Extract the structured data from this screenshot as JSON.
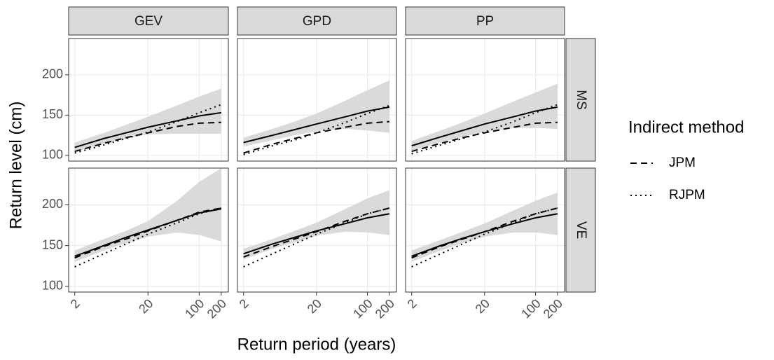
{
  "figure": {
    "xlabel": "Return period (years)",
    "ylabel": "Return level (cm)",
    "facets": {
      "columns": [
        "GEV",
        "GPD",
        "PP"
      ],
      "rows": [
        "MS",
        "VE"
      ]
    },
    "legend": {
      "title": "Indirect method",
      "entries": [
        {
          "name": "JPM",
          "linetype": "dashed"
        },
        {
          "name": "RJPM",
          "linetype": "dotted"
        }
      ]
    }
  },
  "chart_data": [
    {
      "type": "line",
      "log_x": true,
      "grid": true,
      "x": [
        2,
        5,
        10,
        20,
        50,
        100,
        200
      ],
      "xlim": [
        1.65,
        250
      ],
      "xticks": [
        2,
        20,
        100,
        200
      ],
      "ylim": [
        93,
        245
      ],
      "yticks": [
        100,
        150,
        200
      ],
      "band": {
        "color": "#d3d3d3",
        "lower": [
          104,
          115,
          121,
          126,
          127,
          127,
          127
        ],
        "upper": [
          116,
          128,
          138,
          148,
          162,
          173,
          183
        ]
      },
      "series": [
        {
          "linetype": "solid",
          "color": "#000000",
          "values": [
            110,
            121,
            128,
            135,
            143,
            149,
            153
          ]
        },
        {
          "linetype": "dashed",
          "color": "#000000",
          "values": [
            105,
            115,
            122,
            128,
            136,
            140,
            141
          ]
        },
        {
          "linetype": "dotted",
          "color": "#000000",
          "values": [
            103,
            113,
            121,
            129,
            142,
            153,
            163
          ]
        }
      ]
    },
    {
      "type": "line",
      "log_x": true,
      "grid": true,
      "x": [
        2,
        5,
        10,
        20,
        50,
        100,
        200
      ],
      "xlim": [
        1.65,
        250
      ],
      "xticks": [
        2,
        20,
        100,
        200
      ],
      "ylim": [
        93,
        245
      ],
      "yticks": [
        100,
        150,
        200
      ],
      "band": {
        "color": "#d3d3d3",
        "lower": [
          111,
          119,
          125,
          130,
          133,
          131,
          128
        ],
        "upper": [
          122,
          133,
          142,
          152,
          168,
          181,
          193
        ]
      },
      "series": [
        {
          "linetype": "solid",
          "color": "#000000",
          "values": [
            116,
            125,
            132,
            139,
            148,
            155,
            160
          ]
        },
        {
          "linetype": "dashed",
          "color": "#000000",
          "values": [
            103,
            114,
            121,
            128,
            135,
            140,
            142
          ]
        },
        {
          "linetype": "dotted",
          "color": "#000000",
          "values": [
            101,
            112,
            119,
            128,
            141,
            152,
            162
          ]
        }
      ]
    },
    {
      "type": "line",
      "log_x": true,
      "grid": true,
      "x": [
        2,
        5,
        10,
        20,
        50,
        100,
        200
      ],
      "xlim": [
        1.65,
        250
      ],
      "xticks": [
        2,
        20,
        100,
        200
      ],
      "ylim": [
        93,
        245
      ],
      "yticks": [
        100,
        150,
        200
      ],
      "band": {
        "color": "#d3d3d3",
        "lower": [
          106,
          116,
          123,
          129,
          134,
          134,
          133
        ],
        "upper": [
          118,
          131,
          141,
          152,
          167,
          178,
          189
        ]
      },
      "series": [
        {
          "linetype": "solid",
          "color": "#000000",
          "values": [
            112,
            123,
            131,
            139,
            148,
            155,
            160
          ]
        },
        {
          "linetype": "dashed",
          "color": "#000000",
          "values": [
            105,
            115,
            122,
            128,
            135,
            140,
            141
          ]
        },
        {
          "linetype": "dotted",
          "color": "#000000",
          "values": [
            102,
            113,
            121,
            129,
            142,
            153,
            163
          ]
        }
      ]
    },
    {
      "type": "line",
      "log_x": true,
      "grid": true,
      "x": [
        2,
        5,
        10,
        20,
        50,
        100,
        200
      ],
      "xlim": [
        1.65,
        250
      ],
      "xticks": [
        2,
        20,
        100,
        200
      ],
      "ylim": [
        93,
        245
      ],
      "yticks": [
        100,
        150,
        200
      ],
      "band": {
        "color": "#d3d3d3",
        "lower": [
          130,
          144,
          153,
          161,
          166,
          163,
          155
        ],
        "upper": [
          144,
          158,
          168,
          180,
          205,
          228,
          245
        ]
      },
      "series": [
        {
          "linetype": "solid",
          "color": "#000000",
          "values": [
            137,
            150,
            160,
            169,
            181,
            190,
            195
          ]
        },
        {
          "linetype": "dashed",
          "color": "#000000",
          "values": [
            135,
            149,
            158,
            168,
            181,
            191,
            196
          ]
        },
        {
          "linetype": "dotted",
          "color": "#000000",
          "values": [
            124,
            140,
            152,
            164,
            178,
            189,
            196
          ]
        }
      ]
    },
    {
      "type": "line",
      "log_x": true,
      "grid": true,
      "x": [
        2,
        5,
        10,
        20,
        50,
        100,
        200
      ],
      "xlim": [
        1.65,
        250
      ],
      "xticks": [
        2,
        20,
        100,
        200
      ],
      "ylim": [
        93,
        245
      ],
      "yticks": [
        100,
        150,
        200
      ],
      "band": {
        "color": "#d3d3d3",
        "lower": [
          133,
          146,
          154,
          162,
          167,
          166,
          163
        ],
        "upper": [
          146,
          158,
          168,
          178,
          195,
          208,
          218
        ]
      },
      "series": [
        {
          "linetype": "solid",
          "color": "#000000",
          "values": [
            140,
            152,
            160,
            168,
            177,
            184,
            189
          ]
        },
        {
          "linetype": "dashed",
          "color": "#000000",
          "values": [
            136,
            149,
            158,
            167,
            180,
            189,
            196
          ]
        },
        {
          "linetype": "dotted",
          "color": "#000000",
          "values": [
            124,
            140,
            152,
            164,
            178,
            189,
            196
          ]
        }
      ]
    },
    {
      "type": "line",
      "log_x": true,
      "grid": true,
      "x": [
        2,
        5,
        10,
        20,
        50,
        100,
        200
      ],
      "xlim": [
        1.65,
        250
      ],
      "xticks": [
        2,
        20,
        100,
        200
      ],
      "ylim": [
        93,
        245
      ],
      "yticks": [
        100,
        150,
        200
      ],
      "band": {
        "color": "#d3d3d3",
        "lower": [
          130,
          144,
          153,
          161,
          166,
          166,
          163
        ],
        "upper": [
          144,
          157,
          167,
          177,
          193,
          205,
          215
        ]
      },
      "series": [
        {
          "linetype": "solid",
          "color": "#000000",
          "values": [
            137,
            150,
            159,
            167,
            177,
            184,
            189
          ]
        },
        {
          "linetype": "dashed",
          "color": "#000000",
          "values": [
            135,
            149,
            158,
            167,
            180,
            189,
            196
          ]
        },
        {
          "linetype": "dotted",
          "color": "#000000",
          "values": [
            124,
            140,
            152,
            164,
            178,
            189,
            196
          ]
        }
      ]
    }
  ]
}
